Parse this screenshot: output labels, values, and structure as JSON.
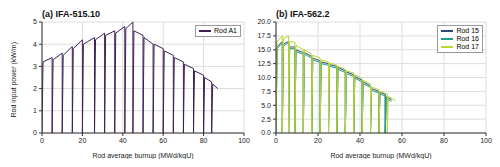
{
  "chart_data": [
    {
      "type": "line",
      "title": "(a) IFA-515.10",
      "x_label": "Rod average burnup (MWd/kgU)",
      "y_label": "Rod input power (kW/m)",
      "xlim": [
        0,
        100
      ],
      "xticks": [
        0,
        20,
        40,
        60,
        80,
        100
      ],
      "ylim": [
        0,
        5
      ],
      "yticks": [
        0,
        1,
        2,
        3,
        4,
        5
      ],
      "grid": true,
      "legend": "upper right",
      "series": [
        {
          "name": "Rod A1",
          "color": "#3d1f55",
          "x": [
            0,
            0.5,
            5,
            5,
            5.5,
            10,
            10,
            10.5,
            15,
            15,
            15.5,
            20,
            20,
            20.5,
            26,
            26,
            26.5,
            31,
            31,
            31.5,
            36,
            36,
            36.5,
            41,
            41,
            41.5,
            45,
            45,
            45.5,
            50,
            50,
            50.5,
            55,
            55,
            55.5,
            60,
            60,
            60.5,
            65,
            65,
            65.5,
            70,
            70,
            70.5,
            75,
            75,
            75.5,
            80,
            80,
            80.5,
            84,
            84,
            84.5,
            87
          ],
          "values": [
            0,
            3.2,
            3.4,
            0,
            3.3,
            3.6,
            0,
            3.5,
            3.9,
            0,
            3.8,
            4.2,
            0,
            4.0,
            4.3,
            0,
            4.2,
            4.5,
            0,
            4.4,
            4.6,
            0,
            4.5,
            4.8,
            0,
            4.7,
            5.0,
            0,
            4.6,
            4.4,
            0,
            4.3,
            4.0,
            0,
            4.0,
            3.8,
            0,
            3.7,
            3.5,
            0,
            3.4,
            3.2,
            0,
            3.1,
            2.9,
            0,
            2.8,
            2.6,
            0,
            2.5,
            2.3,
            0,
            2.2,
            2.0
          ]
        }
      ]
    },
    {
      "type": "line",
      "title": "(b) IFA-562.2",
      "x_label": "Rod average burnup (MWd/kgU)",
      "xlim": [
        0,
        100
      ],
      "xticks": [
        0,
        20,
        40,
        60,
        80,
        100
      ],
      "ylim": [
        0,
        20
      ],
      "yticks": [
        {
          "value": 0,
          "label": "0.0"
        },
        {
          "value": 2.5,
          "label": "2.5"
        },
        {
          "value": 5,
          "label": "5.0"
        },
        {
          "value": 7.5,
          "label": "7.5"
        },
        {
          "value": 10,
          "label": "10.0"
        },
        {
          "value": 12.5,
          "label": "12.5"
        },
        {
          "value": 15,
          "label": "15.0"
        },
        {
          "value": 17.5,
          "label": "17.5"
        },
        {
          "value": 20,
          "label": "20.0"
        }
      ],
      "grid": true,
      "legend": "upper right",
      "series": [
        {
          "name": "Rod 15",
          "color": "#2b4a7a",
          "x": [
            0,
            0.5,
            3,
            3,
            3.5,
            6,
            6,
            6.5,
            9,
            9,
            9.5,
            13,
            13,
            13.5,
            17,
            17,
            17.5,
            21,
            21,
            21.5,
            25,
            25,
            25.5,
            29,
            29,
            29.5,
            33,
            33,
            33.5,
            37,
            37,
            37.5,
            41,
            41,
            41.5,
            45,
            45,
            45.5,
            49,
            49,
            49.5,
            52,
            52,
            52.5,
            55
          ],
          "values": [
            0,
            15.5,
            16.5,
            0,
            16,
            16.5,
            0,
            15.5,
            15.5,
            0,
            15,
            14.5,
            0,
            14.5,
            13.8,
            0,
            13.5,
            13,
            0,
            12.8,
            12.5,
            0,
            12.3,
            12,
            0,
            11.8,
            11.2,
            0,
            11,
            10.5,
            0,
            10.2,
            9.5,
            0,
            9.2,
            8.5,
            0,
            8,
            7.5,
            0,
            7.3,
            7,
            0,
            6.5,
            6
          ]
        },
        {
          "name": "Rod 16",
          "color": "#1f9e89",
          "x": [
            0,
            0.5,
            3,
            3,
            3.5,
            6,
            6,
            6.5,
            9,
            9,
            9.5,
            13,
            13,
            13.5,
            17,
            17,
            17.5,
            21,
            21,
            21.5,
            25,
            25,
            25.5,
            29,
            29,
            29.5,
            33,
            33,
            33.5,
            37,
            37,
            37.5,
            41,
            41,
            41.5,
            45,
            45,
            45.5,
            49,
            49,
            49.5,
            52,
            52,
            52.5,
            55
          ],
          "values": [
            0,
            15.2,
            16.2,
            0,
            15.7,
            16.2,
            0,
            15.2,
            15.2,
            0,
            14.7,
            14.2,
            0,
            14.2,
            13.5,
            0,
            13.2,
            12.7,
            0,
            12.5,
            12.2,
            0,
            12,
            11.7,
            0,
            11.5,
            10.9,
            0,
            10.7,
            10.2,
            0,
            9.9,
            9.2,
            0,
            8.9,
            8.2,
            0,
            7.7,
            7.2,
            0,
            7,
            6.7,
            0,
            6.2,
            5.7
          ]
        },
        {
          "name": "Rod 17",
          "color": "#b8d531",
          "x": [
            0,
            0.5,
            3,
            3,
            3.5,
            6,
            6,
            6.5,
            9,
            9,
            9.5,
            13,
            13,
            13.5,
            17,
            17,
            17.5,
            21,
            21,
            21.5,
            25,
            25,
            25.5,
            29,
            29,
            29.5,
            33,
            33,
            33.5,
            37,
            37,
            37.5,
            41,
            41,
            41.5,
            45,
            45,
            45.5,
            49,
            49,
            49.5,
            53,
            53,
            53.5,
            57
          ],
          "values": [
            0,
            16.5,
            17.5,
            0,
            17,
            17.5,
            0,
            16.5,
            16.3,
            0,
            15.8,
            15,
            0,
            15,
            14.2,
            0,
            14,
            13.5,
            0,
            13.2,
            12.8,
            0,
            12.6,
            12.2,
            0,
            12,
            11.5,
            0,
            11.2,
            10.8,
            0,
            10.5,
            9.8,
            0,
            9.5,
            8.8,
            0,
            8.3,
            7.8,
            0,
            7.5,
            7,
            0,
            6.6,
            5.8
          ]
        }
      ]
    }
  ]
}
